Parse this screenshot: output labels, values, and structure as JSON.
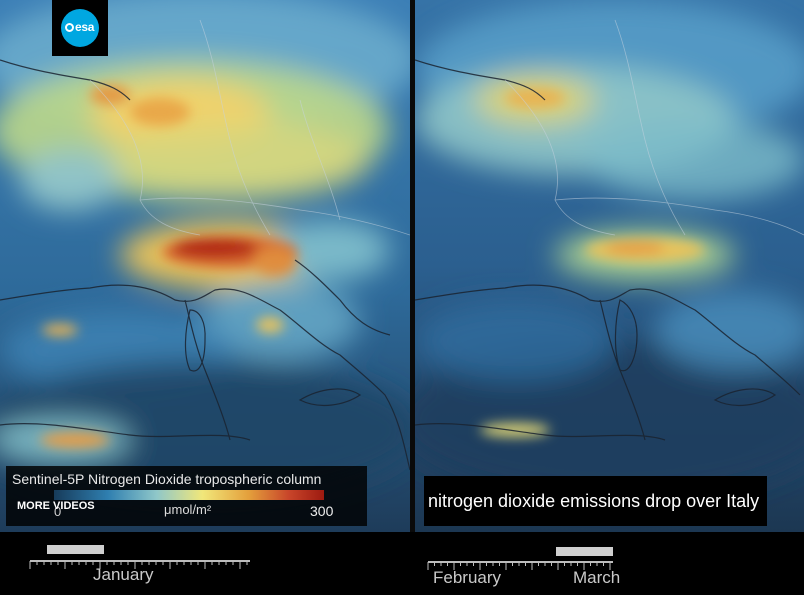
{
  "logo": {
    "text": "esa"
  },
  "legend": {
    "title": "Sentinel-5P Nitrogen Dioxide tropospheric column",
    "min_label": "0",
    "max_label": "300",
    "unit": "μmol/m²",
    "more_videos": "MORE VIDEOS"
  },
  "caption": "nitrogen dioxide emissions drop over Italy",
  "timeline_left": {
    "month": "January"
  },
  "timeline_right": {
    "month_1": "February",
    "month_2": "March"
  },
  "colors": {
    "low": "#173b5a",
    "mid": "#f1e77a",
    "high": "#9d1a10",
    "slider": "#cfcfcf"
  }
}
